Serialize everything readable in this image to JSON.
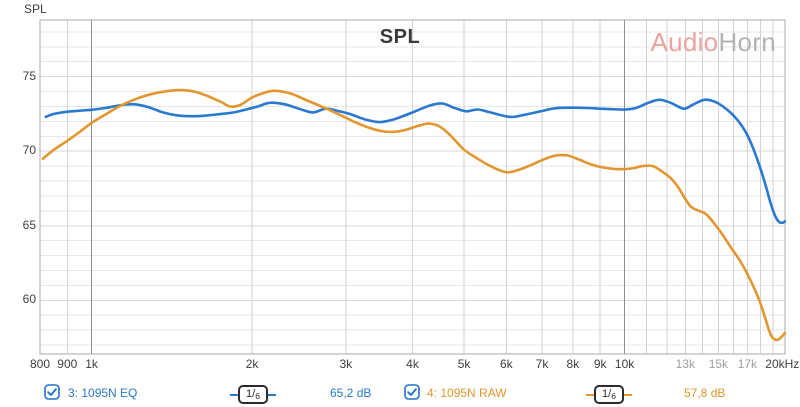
{
  "y_axis_title": "SPL",
  "watermark": {
    "part1": "Audio",
    "part2": "Horn"
  },
  "colors": {
    "eq_trace": "#2879cf",
    "raw_trace": "#e2962f",
    "checkbox": "#2073cf",
    "grid_minor_h": "#e7e7e7",
    "grid_major_h": "#dadada",
    "grid_minor_v": "#d2d2d2",
    "grid_major_v": "#8f8f8f",
    "plot_border": "#a8a8a8"
  },
  "legend": [
    {
      "label": "3: 1095N EQ",
      "checked": true,
      "smoothing": {
        "num": "1",
        "slash": "/",
        "den": "6"
      },
      "value": "65,2 dB",
      "color": "#2879cf"
    },
    {
      "label": "4: 1095N RAW",
      "checked": true,
      "smoothing": {
        "num": "1",
        "slash": "/",
        "den": "6"
      },
      "value": "57,8 dB",
      "color": "#e2962f"
    }
  ],
  "chart_data": {
    "type": "line",
    "title": "SPL",
    "ylabel": "SPL",
    "x_scale": "log",
    "xlim": [
      800,
      20000
    ],
    "ylim": [
      56.4,
      78.8
    ],
    "grid": true,
    "legend_position": "bottom",
    "y_tick_step_minor": 1,
    "y_tick_step_major": 5,
    "y_ticks": [
      {
        "v": 75,
        "label": "75"
      },
      {
        "v": 70,
        "label": "70"
      },
      {
        "v": 65,
        "label": "65"
      },
      {
        "v": 60,
        "label": "60"
      }
    ],
    "x_gridlines": [
      800,
      900,
      1000,
      2000,
      3000,
      4000,
      5000,
      6000,
      7000,
      8000,
      9000,
      10000,
      11000,
      12000,
      13000,
      14000,
      15000,
      16000,
      17000,
      18000,
      19000,
      20000
    ],
    "x_major_gridlines": [
      1000,
      10000
    ],
    "x_ticks": [
      {
        "f": 800,
        "label": "800"
      },
      {
        "f": 900,
        "label": "900"
      },
      {
        "f": 1000,
        "label": "1k"
      },
      {
        "f": 2000,
        "label": "2k"
      },
      {
        "f": 3000,
        "label": "3k"
      },
      {
        "f": 4000,
        "label": "4k"
      },
      {
        "f": 5000,
        "label": "5k"
      },
      {
        "f": 6000,
        "label": "6k"
      },
      {
        "f": 7000,
        "label": "7k"
      },
      {
        "f": 8000,
        "label": "8k"
      },
      {
        "f": 9000,
        "label": "9k"
      },
      {
        "f": 10000,
        "label": "10k"
      },
      {
        "f": 13000,
        "label": "13k",
        "muted": true
      },
      {
        "f": 15000,
        "label": "15k",
        "muted": true
      },
      {
        "f": 17000,
        "label": "17k",
        "muted": true
      },
      {
        "f": 20000,
        "label": "20kHz"
      }
    ],
    "series": [
      {
        "name": "3: 1095N EQ",
        "color": "#2879cf",
        "points": [
          [
            820,
            72.3
          ],
          [
            850,
            72.5
          ],
          [
            900,
            72.65
          ],
          [
            950,
            72.72
          ],
          [
            1000,
            72.78
          ],
          [
            1060,
            72.9
          ],
          [
            1140,
            73.1
          ],
          [
            1200,
            73.15
          ],
          [
            1280,
            72.95
          ],
          [
            1360,
            72.6
          ],
          [
            1450,
            72.4
          ],
          [
            1550,
            72.35
          ],
          [
            1650,
            72.4
          ],
          [
            1750,
            72.5
          ],
          [
            1850,
            72.6
          ],
          [
            1950,
            72.8
          ],
          [
            2050,
            73.0
          ],
          [
            2160,
            73.25
          ],
          [
            2300,
            73.15
          ],
          [
            2450,
            72.85
          ],
          [
            2600,
            72.6
          ],
          [
            2750,
            72.85
          ],
          [
            2900,
            72.7
          ],
          [
            3050,
            72.5
          ],
          [
            3250,
            72.15
          ],
          [
            3470,
            71.95
          ],
          [
            3700,
            72.15
          ],
          [
            4000,
            72.6
          ],
          [
            4300,
            73.05
          ],
          [
            4550,
            73.2
          ],
          [
            4800,
            72.9
          ],
          [
            5050,
            72.68
          ],
          [
            5300,
            72.8
          ],
          [
            5600,
            72.6
          ],
          [
            6100,
            72.3
          ],
          [
            6500,
            72.45
          ],
          [
            7000,
            72.7
          ],
          [
            7400,
            72.88
          ],
          [
            7900,
            72.92
          ],
          [
            8500,
            72.9
          ],
          [
            9000,
            72.85
          ],
          [
            9500,
            72.82
          ],
          [
            10000,
            72.8
          ],
          [
            10500,
            72.9
          ],
          [
            11000,
            73.2
          ],
          [
            11600,
            73.45
          ],
          [
            12200,
            73.25
          ],
          [
            12900,
            72.85
          ],
          [
            13400,
            73.1
          ],
          [
            14100,
            73.45
          ],
          [
            14700,
            73.35
          ],
          [
            15300,
            73.0
          ],
          [
            16000,
            72.4
          ],
          [
            16600,
            71.7
          ],
          [
            17100,
            70.9
          ],
          [
            17600,
            69.8
          ],
          [
            18000,
            68.8
          ],
          [
            18400,
            67.7
          ],
          [
            18800,
            66.5
          ],
          [
            19200,
            65.6
          ],
          [
            19500,
            65.25
          ],
          [
            19800,
            65.2
          ],
          [
            20000,
            65.3
          ]
        ]
      },
      {
        "name": "4: 1095N RAW",
        "color": "#e2962f",
        "points": [
          [
            810,
            69.5
          ],
          [
            850,
            70.1
          ],
          [
            900,
            70.7
          ],
          [
            950,
            71.3
          ],
          [
            1000,
            71.9
          ],
          [
            1060,
            72.45
          ],
          [
            1140,
            73.1
          ],
          [
            1220,
            73.55
          ],
          [
            1300,
            73.85
          ],
          [
            1400,
            74.05
          ],
          [
            1480,
            74.1
          ],
          [
            1560,
            74.0
          ],
          [
            1650,
            73.7
          ],
          [
            1750,
            73.3
          ],
          [
            1820,
            73.0
          ],
          [
            1900,
            73.1
          ],
          [
            2000,
            73.6
          ],
          [
            2100,
            73.9
          ],
          [
            2200,
            74.05
          ],
          [
            2350,
            73.9
          ],
          [
            2500,
            73.5
          ],
          [
            2700,
            73.0
          ],
          [
            2900,
            72.5
          ],
          [
            3100,
            72.0
          ],
          [
            3300,
            71.6
          ],
          [
            3500,
            71.35
          ],
          [
            3700,
            71.3
          ],
          [
            3900,
            71.45
          ],
          [
            4100,
            71.7
          ],
          [
            4300,
            71.85
          ],
          [
            4500,
            71.65
          ],
          [
            4700,
            71.1
          ],
          [
            5000,
            70.1
          ],
          [
            5300,
            69.5
          ],
          [
            5600,
            69.0
          ],
          [
            5900,
            68.65
          ],
          [
            6100,
            68.6
          ],
          [
            6500,
            68.9
          ],
          [
            7000,
            69.4
          ],
          [
            7400,
            69.7
          ],
          [
            7800,
            69.72
          ],
          [
            8200,
            69.45
          ],
          [
            8600,
            69.15
          ],
          [
            9000,
            68.95
          ],
          [
            9500,
            68.82
          ],
          [
            10000,
            68.8
          ],
          [
            10400,
            68.87
          ],
          [
            10800,
            69.0
          ],
          [
            11300,
            69.0
          ],
          [
            11800,
            68.6
          ],
          [
            12200,
            68.2
          ],
          [
            12600,
            67.6
          ],
          [
            12900,
            67.0
          ],
          [
            13300,
            66.3
          ],
          [
            13800,
            66.0
          ],
          [
            14200,
            65.8
          ],
          [
            14700,
            65.2
          ],
          [
            15200,
            64.5
          ],
          [
            15800,
            63.6
          ],
          [
            16500,
            62.6
          ],
          [
            17200,
            61.4
          ],
          [
            17900,
            60.0
          ],
          [
            18400,
            58.7
          ],
          [
            18800,
            57.7
          ],
          [
            19100,
            57.4
          ],
          [
            19400,
            57.35
          ],
          [
            19700,
            57.55
          ],
          [
            20000,
            57.8
          ]
        ]
      }
    ]
  }
}
